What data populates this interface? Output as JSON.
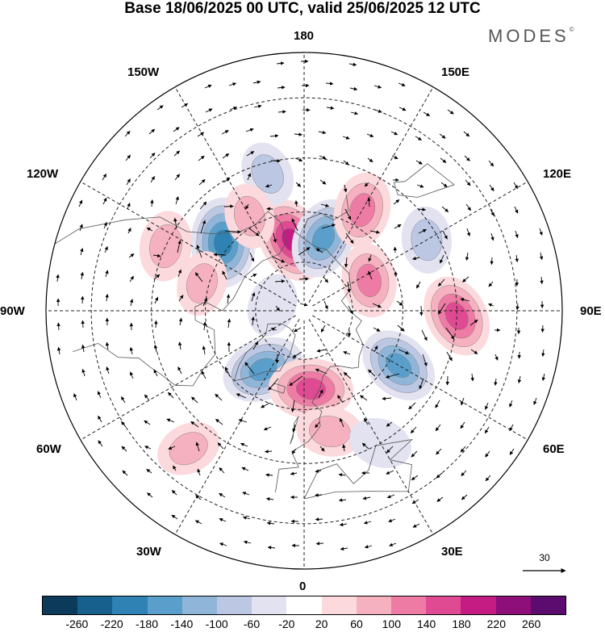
{
  "header": {
    "title": "Base 18/06/2025 00 UTC, valid 25/06/2025 12 UTC",
    "brand": "MODES",
    "brand_mark": "©"
  },
  "map": {
    "projection": "north-polar-stereographic",
    "longitude_labels": {
      "top": "180",
      "top_right": "150E",
      "right_upper": "120E",
      "right": "90E",
      "right_lower": "60E",
      "bottom_right": "30E",
      "bottom": "0",
      "bottom_left": "30W",
      "left_lower": "60W",
      "left": "90W",
      "left_upper": "120W",
      "top_left": "150W"
    },
    "vector_scale_label": "30"
  },
  "colorbar": {
    "ticks": [
      "-260",
      "-220",
      "-180",
      "-140",
      "-100",
      "-60",
      "-20",
      "20",
      "60",
      "100",
      "140",
      "180",
      "220",
      "260"
    ],
    "colors": [
      "#0b3a5a",
      "#17608d",
      "#2f82b4",
      "#5a9fcb",
      "#8fb6d9",
      "#bcc8e3",
      "#e2e2f0",
      "#ffffff",
      "#fbd9dc",
      "#f6b1c0",
      "#ee7ba3",
      "#e04a92",
      "#c41c83",
      "#8e0f79",
      "#5b0c6e"
    ]
  },
  "anomaly_centers": [
    {
      "name": "low-alaska",
      "sign": -1,
      "intensity": 1.0,
      "lon": -130,
      "lat": 58
    },
    {
      "name": "high-chukchi",
      "sign": 1,
      "intensity": 0.9,
      "lon": -170,
      "lat": 68
    },
    {
      "name": "low-eastsib",
      "sign": -1,
      "intensity": 0.75,
      "lon": 165,
      "lat": 67
    },
    {
      "name": "high-kamchatka",
      "sign": 1,
      "intensity": 0.6,
      "lon": 150,
      "lat": 55
    },
    {
      "name": "low-pacific",
      "sign": -1,
      "intensity": 0.3,
      "lon": -165,
      "lat": 48
    },
    {
      "name": "high-bering",
      "sign": 1,
      "intensity": 0.3,
      "lon": -150,
      "lat": 57
    },
    {
      "name": "high-westcoast",
      "sign": 1,
      "intensity": 0.45,
      "lon": -115,
      "lat": 45
    },
    {
      "name": "high-canada",
      "sign": 1,
      "intensity": 0.3,
      "lon": -105,
      "lat": 58
    },
    {
      "name": "low-greenland",
      "sign": -1,
      "intensity": 0.8,
      "lon": -35,
      "lat": 68
    },
    {
      "name": "high-norway",
      "sign": 1,
      "intensity": 0.85,
      "lon": 5,
      "lat": 66
    },
    {
      "name": "high-northsea",
      "sign": 1,
      "intensity": 0.35,
      "lon": 12,
      "lat": 53
    },
    {
      "name": "low-westsib",
      "sign": -1,
      "intensity": 0.75,
      "lon": 60,
      "lat": 57
    },
    {
      "name": "high-kazakh",
      "sign": 1,
      "intensity": 0.8,
      "lon": 88,
      "lat": 45
    },
    {
      "name": "high-yakutia",
      "sign": 1,
      "intensity": 0.55,
      "lon": 115,
      "lat": 68
    },
    {
      "name": "low-mongolia",
      "sign": -1,
      "intensity": 0.35,
      "lon": 120,
      "lat": 48
    },
    {
      "name": "high-atlantic",
      "sign": 1,
      "intensity": 0.3,
      "lon": -40,
      "lat": 38
    },
    {
      "name": "low-arctic",
      "sign": -1,
      "intensity": 0.25,
      "lon": -100,
      "lat": 80
    },
    {
      "name": "low-med",
      "sign": -1,
      "intensity": 0.25,
      "lon": 30,
      "lat": 45
    }
  ]
}
